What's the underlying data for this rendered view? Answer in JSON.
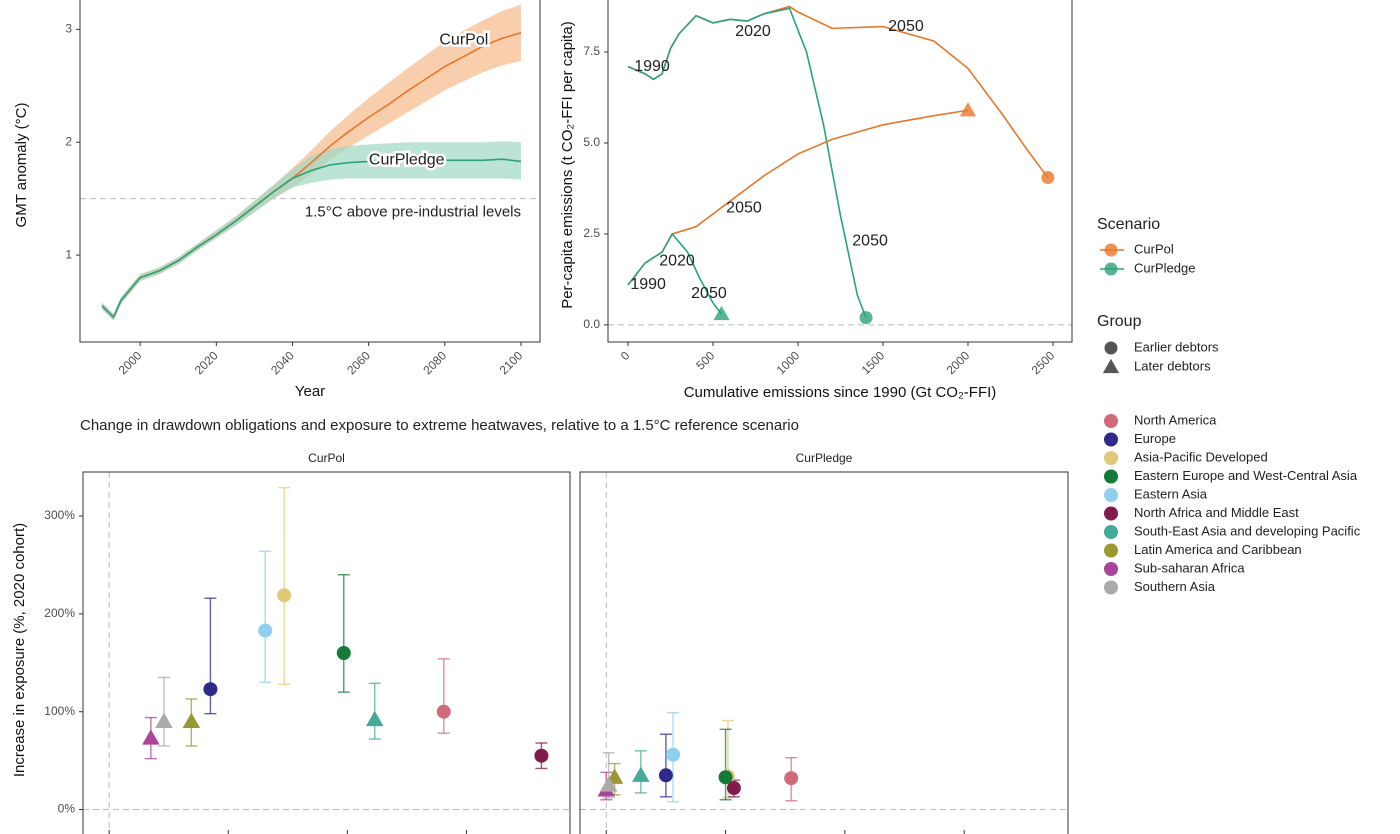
{
  "chart_data": [
    {
      "type": "line",
      "ylabel": "GMT anomaly (°C)",
      "xlabel": "Year",
      "x": [
        1990,
        1993,
        1995,
        2000,
        2005,
        2010,
        2015,
        2020,
        2025,
        2030,
        2035,
        2040,
        2045,
        2050,
        2055,
        2060,
        2065,
        2070,
        2075,
        2080,
        2085,
        2090,
        2095,
        2100
      ],
      "series": [
        {
          "name": "CurPol",
          "color": "#e8762a",
          "band_color": "#f6b98a",
          "values": [
            0.55,
            0.45,
            0.6,
            0.8,
            0.86,
            0.95,
            1.07,
            1.18,
            1.3,
            1.43,
            1.56,
            1.68,
            1.82,
            1.97,
            2.1,
            2.22,
            2.33,
            2.45,
            2.56,
            2.67,
            2.76,
            2.85,
            2.92,
            2.97
          ],
          "lower": [
            0.52,
            0.42,
            0.57,
            0.77,
            0.83,
            0.92,
            1.04,
            1.15,
            1.26,
            1.38,
            1.5,
            1.6,
            1.72,
            1.85,
            1.96,
            2.06,
            2.16,
            2.26,
            2.36,
            2.46,
            2.54,
            2.62,
            2.68,
            2.72
          ],
          "upper": [
            0.58,
            0.48,
            0.63,
            0.83,
            0.89,
            0.98,
            1.1,
            1.22,
            1.34,
            1.48,
            1.62,
            1.77,
            1.93,
            2.1,
            2.25,
            2.39,
            2.52,
            2.65,
            2.77,
            2.89,
            2.99,
            3.08,
            3.16,
            3.22
          ]
        },
        {
          "name": "CurPledge",
          "color": "#2ba27a",
          "band_color": "#9fd9c3",
          "values": [
            0.55,
            0.45,
            0.6,
            0.8,
            0.86,
            0.95,
            1.07,
            1.18,
            1.3,
            1.43,
            1.56,
            1.68,
            1.75,
            1.8,
            1.82,
            1.83,
            1.84,
            1.84,
            1.84,
            1.84,
            1.84,
            1.84,
            1.85,
            1.83
          ],
          "lower": [
            0.52,
            0.42,
            0.57,
            0.77,
            0.83,
            0.92,
            1.04,
            1.15,
            1.26,
            1.38,
            1.5,
            1.6,
            1.64,
            1.67,
            1.68,
            1.68,
            1.68,
            1.68,
            1.68,
            1.68,
            1.68,
            1.68,
            1.68,
            1.67
          ],
          "upper": [
            0.58,
            0.48,
            0.63,
            0.83,
            0.89,
            0.98,
            1.1,
            1.22,
            1.34,
            1.48,
            1.62,
            1.76,
            1.88,
            1.94,
            1.97,
            1.98,
            1.99,
            2,
            2,
            2,
            2,
            2,
            2.01,
            2
          ]
        }
      ],
      "hline": 1.5,
      "hline_label": "1.5°C above pre-industrial levels",
      "xlim": [
        1984.2,
        2105
      ],
      "xticks": [
        2000,
        2020,
        2040,
        2060,
        2080,
        2100
      ],
      "ylim": [
        0.23,
        3.26
      ],
      "yticks": [
        1,
        2,
        3
      ]
    },
    {
      "type": "line",
      "ylabel": "Per-capita emissions (t CO₂-FFI per capita)",
      "xlabel": "Cumulative emissions since 1990 (Gt CO₂-FFI)",
      "series": [
        {
          "color": "#e8762a",
          "shape": "circle",
          "x": [
            0,
            50,
            100,
            150,
            200,
            250,
            300,
            400,
            500,
            600,
            700,
            800,
            950,
            1000,
            1200,
            1500,
            1800,
            2000,
            2200,
            2350,
            2470
          ],
          "values": [
            7.1,
            7.0,
            6.9,
            6.75,
            6.9,
            7.6,
            8.0,
            8.5,
            8.3,
            8.4,
            8.35,
            8.55,
            8.75,
            8.6,
            8.15,
            8.2,
            7.8,
            7.05,
            5.8,
            4.8,
            4.05
          ]
        },
        {
          "color": "#2ba27a",
          "shape": "circle",
          "x": [
            0,
            50,
            100,
            150,
            200,
            250,
            300,
            400,
            500,
            600,
            700,
            800,
            950,
            1050,
            1150,
            1250,
            1350,
            1400
          ],
          "values": [
            7.1,
            7.0,
            6.9,
            6.75,
            6.9,
            7.6,
            8.0,
            8.5,
            8.3,
            8.4,
            8.35,
            8.55,
            8.7,
            7.5,
            5.5,
            3.0,
            0.8,
            0.2
          ]
        },
        {
          "color": "#e8762a",
          "shape": "triangle",
          "x": [
            0,
            50,
            100,
            150,
            200,
            260,
            400,
            600,
            800,
            1000,
            1200,
            1500,
            1800,
            2000
          ],
          "values": [
            1.1,
            1.4,
            1.7,
            1.85,
            2.0,
            2.5,
            2.7,
            3.4,
            4.1,
            4.7,
            5.1,
            5.5,
            5.75,
            5.9
          ]
        },
        {
          "color": "#2ba27a",
          "shape": "triangle",
          "x": [
            0,
            50,
            100,
            150,
            200,
            260,
            350,
            420,
            500,
            550
          ],
          "values": [
            1.1,
            1.4,
            1.7,
            1.85,
            2.0,
            2.5,
            2.0,
            1.3,
            0.6,
            0.3
          ]
        }
      ],
      "labels": [
        {
          "text": "1990",
          "x": 141,
          "y": 7.1,
          "color": "#2e8b3e"
        },
        {
          "text": "2020",
          "x": 735,
          "y": 8.05,
          "color": "#2e8b3e"
        },
        {
          "text": "2050",
          "x": 1635,
          "y": 8.2,
          "color": "#e8762a"
        },
        {
          "text": "2050",
          "x": 682,
          "y": 3.2,
          "color": "#e8762a"
        },
        {
          "text": "2050",
          "x": 1424,
          "y": 2.3,
          "color": "#2ba27a"
        },
        {
          "text": "2020",
          "x": 288,
          "y": 1.75,
          "color": "#2e8b3e"
        },
        {
          "text": "1990",
          "x": 118,
          "y": 1.1,
          "color": "#2e8b3e"
        },
        {
          "text": "2050",
          "x": 476,
          "y": 0.85,
          "color": "#2ba27a"
        }
      ],
      "hline": 0,
      "xlim": [
        -118,
        2612
      ],
      "xticks": [
        0,
        500,
        1000,
        1500,
        2000,
        2500
      ],
      "ylim": [
        -0.47,
        8.93
      ],
      "yticks": [
        {
          "value": 0,
          "label": "0.0"
        },
        2.5,
        {
          "value": 5,
          "label": "5.0"
        },
        7.5
      ]
    },
    {
      "type": "errorbar",
      "title": "Change in drawdown obligations and exposure to extreme heatwaves, relative to a 1.5°C reference scenario",
      "ylabel": "Increase in exposure (%, 2020 cohort)",
      "facets": [
        "CurPol",
        "CurPledge"
      ],
      "xlim": [
        -0.22,
        3.87
      ],
      "xticks": [
        0,
        1,
        2,
        3
      ],
      "vline": 0,
      "hline": 0,
      "ylim": [
        -25,
        345
      ],
      "yticks": [
        {
          "value": 0,
          "label": "0%"
        },
        {
          "value": 100,
          "label": "100%"
        },
        {
          "value": 200,
          "label": "200%"
        },
        {
          "value": 300,
          "label": "300%"
        }
      ],
      "series": [
        {
          "name": "North America",
          "color": "#d16b7a",
          "shapes": [
            "circle",
            "circle"
          ],
          "x": [
            2.81,
            1.55
          ],
          "values": [
            100,
            32
          ],
          "lower": [
            78,
            9
          ],
          "upper": [
            154,
            53
          ]
        },
        {
          "name": "Europe",
          "color": "#2e2a8c",
          "shapes": [
            "circle",
            "circle"
          ],
          "x": [
            0.85,
            0.5
          ],
          "values": [
            123,
            35
          ],
          "lower": [
            98,
            13
          ],
          "upper": [
            216,
            77
          ]
        },
        {
          "name": "Asia-Pacific Developed",
          "color": "#e3c879",
          "shapes": [
            "circle",
            "circle"
          ],
          "x": [
            1.47,
            1.02
          ],
          "values": [
            219,
            34
          ],
          "lower": [
            128,
            12
          ],
          "upper": [
            329,
            91
          ]
        },
        {
          "name": "Eastern Europe and West-Central Asia",
          "color": "#137a37",
          "shapes": [
            "circle",
            "circle"
          ],
          "x": [
            1.97,
            1.0
          ],
          "values": [
            160,
            33
          ],
          "lower": [
            120,
            10
          ],
          "upper": [
            240,
            82
          ]
        },
        {
          "name": "Eastern Asia",
          "color": "#8fd0ef",
          "shapes": [
            "circle",
            "circle"
          ],
          "x": [
            1.31,
            0.56
          ],
          "values": [
            183,
            56
          ],
          "lower": [
            130,
            8
          ],
          "upper": [
            264,
            99
          ]
        },
        {
          "name": "North Africa and Middle East",
          "color": "#821a4d",
          "shapes": [
            "circle",
            "circle"
          ],
          "x": [
            3.63,
            1.07
          ],
          "values": [
            55,
            22
          ],
          "lower": [
            42,
            13
          ],
          "upper": [
            68,
            30
          ]
        },
        {
          "name": "South-East Asia and developing Pacific",
          "color": "#44aa99",
          "shapes": [
            "triangle",
            "triangle"
          ],
          "x": [
            2.23,
            0.29
          ],
          "values": [
            92,
            35
          ],
          "lower": [
            72,
            17
          ],
          "upper": [
            129,
            60
          ]
        },
        {
          "name": "Latin America and Caribbean",
          "color": "#999933",
          "shapes": [
            "triangle",
            "triangle"
          ],
          "x": [
            0.69,
            0.07
          ],
          "values": [
            90,
            33
          ],
          "lower": [
            65,
            15
          ],
          "upper": [
            113,
            47
          ]
        },
        {
          "name": "Sub-saharan Africa",
          "color": "#aa4499",
          "shapes": [
            "triangle",
            "triangle"
          ],
          "x": [
            0.35,
            0.0
          ],
          "values": [
            73,
            20
          ],
          "lower": [
            52,
            10
          ],
          "upper": [
            94,
            38
          ]
        },
        {
          "name": "Southern Asia",
          "color": "#aaaaaa",
          "shapes": [
            "triangle",
            "triangle"
          ],
          "x": [
            0.46,
            0.02
          ],
          "values": [
            90,
            25
          ],
          "lower": [
            65,
            12
          ],
          "upper": [
            135,
            58
          ]
        }
      ]
    }
  ],
  "legends": {
    "scenario": {
      "title": "Scenario",
      "items": [
        {
          "name": "CurPol",
          "color": "#e8762a"
        },
        {
          "name": "CurPledge",
          "color": "#2ba27a"
        }
      ]
    },
    "group": {
      "title": "Group",
      "items": [
        {
          "name": "Earlier debtors",
          "shape": "circle"
        },
        {
          "name": "Later debtors",
          "shape": "triangle"
        }
      ]
    }
  }
}
